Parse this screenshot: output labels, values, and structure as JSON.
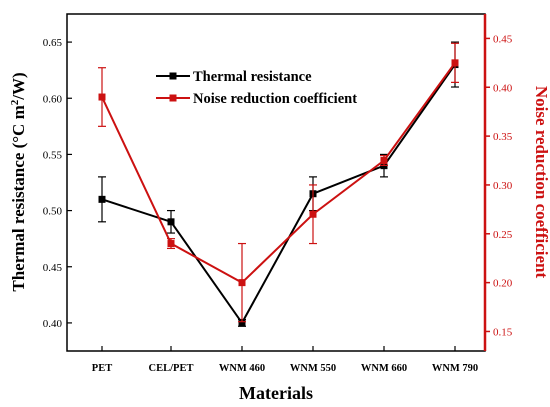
{
  "chart_data": {
    "type": "line",
    "categories": [
      "PET",
      "CEL/PET",
      "WNM 460",
      "WNM 550",
      "WNM 660",
      "WNM 790"
    ],
    "xlabel": "Materials",
    "y_left": {
      "label_main": "Thermal resistance (°C m",
      "label_sup": "2",
      "label_tail": "/W)",
      "range": [
        0.375,
        0.675
      ],
      "ticks": [
        "0.40",
        "0.45",
        "0.50",
        "0.55",
        "0.60",
        "0.65"
      ],
      "tick_values": [
        0.4,
        0.45,
        0.5,
        0.55,
        0.6,
        0.65
      ]
    },
    "y_right": {
      "label": "Noise reduction coefficient",
      "range": [
        0.13,
        0.475
      ],
      "ticks": [
        "0.15",
        "0.20",
        "0.25",
        "0.30",
        "0.35",
        "0.40",
        "0.45"
      ],
      "tick_values": [
        0.15,
        0.2,
        0.25,
        0.3,
        0.35,
        0.4,
        0.45
      ]
    },
    "series": [
      {
        "name": "Thermal resistance",
        "axis": "left",
        "color": "#000000",
        "marker": "square",
        "values": [
          0.51,
          0.49,
          0.4,
          0.515,
          0.54,
          0.63
        ],
        "errors": [
          0.02,
          0.01,
          0.003,
          0.015,
          0.01,
          0.02
        ]
      },
      {
        "name": "Noise reduction coefficient",
        "axis": "right",
        "color": "#cc1111",
        "marker": "square",
        "values": [
          0.39,
          0.24,
          0.2,
          0.27,
          0.325,
          0.425
        ],
        "errors": [
          0.03,
          0.005,
          0.04,
          0.03,
          0.005,
          0.02
        ]
      }
    ],
    "legend_position": "top-center",
    "grid": false
  },
  "colors": {
    "left_axis": "#000000",
    "right_axis": "#cc1111"
  }
}
